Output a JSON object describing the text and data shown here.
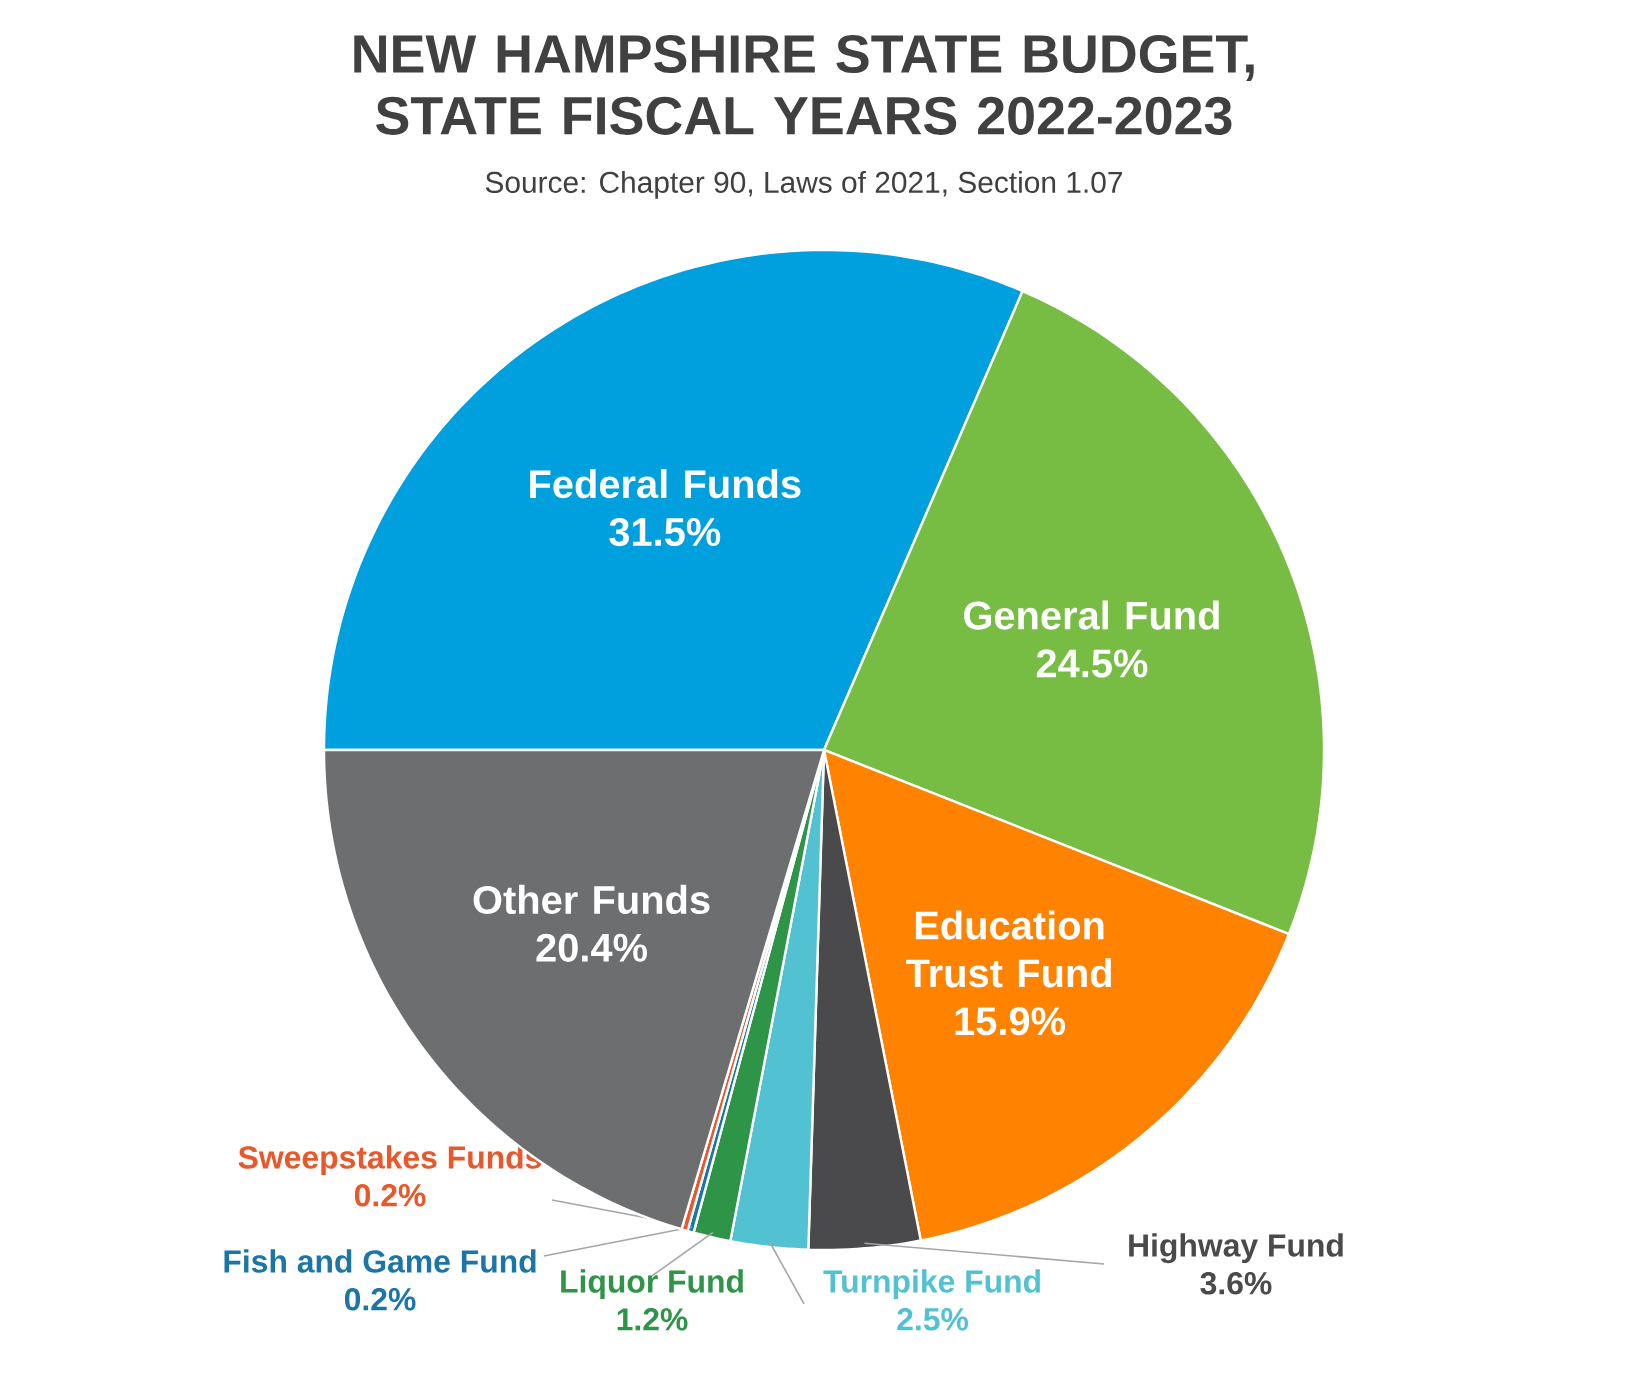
{
  "chart_data": {
    "type": "pie",
    "title": "NEW HAMPSHIRE STATE BUDGET, STATE FISCAL YEARS 2022-2023",
    "subtitle": "Source: Chapter 90, Laws of 2021, Section 1.07",
    "categories": [
      "Federal Funds",
      "General Fund",
      "Education Trust Fund",
      "Highway Fund",
      "Turnpike Fund",
      "Liquor Fund",
      "Fish and Game Fund",
      "Sweepstakes Funds",
      "Other Funds"
    ],
    "values": [
      31.5,
      24.5,
      15.9,
      3.6,
      2.5,
      1.2,
      0.2,
      0.2,
      20.4
    ],
    "colors": [
      "#009fde",
      "#78bd43",
      "#ff8200",
      "#4a4a4c",
      "#52c2d2",
      "#2e9447",
      "#1b75a7",
      "#e8582a",
      "#6d6e70"
    ],
    "value_labels": [
      "31.5%",
      "24.5%",
      "15.9%",
      "3.6%",
      "2.5%",
      "1.2%",
      "0.2%",
      "0.2%",
      "20.4%"
    ]
  }
}
